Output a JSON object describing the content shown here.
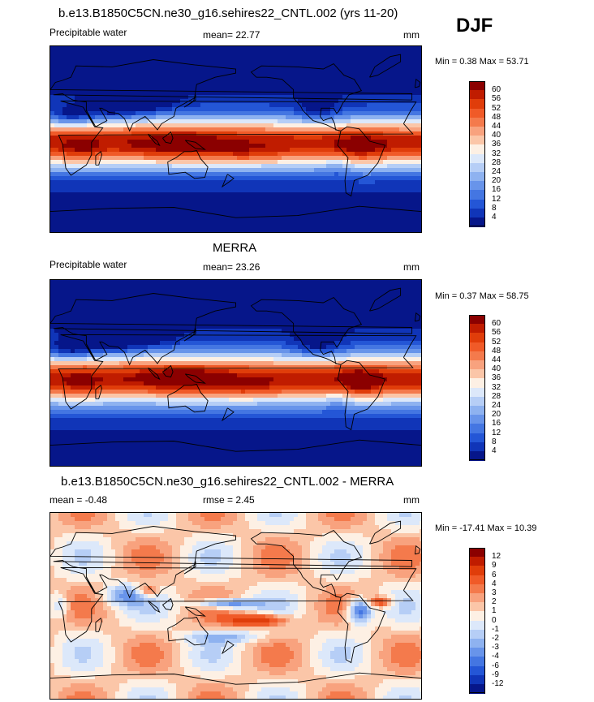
{
  "season": "DJF",
  "panels": [
    {
      "title": "b.e13.B1850C5CN.ne30_g16.sehires22_CNTL.002 (yrs 11-20)",
      "left_label": "Precipitable water",
      "stat_label": "mean=  22.77",
      "units": "mm",
      "minmax": "Min =   0.38 Max =   53.71",
      "type": "field",
      "mean": 22.77,
      "min": 0.38,
      "max": 53.71
    },
    {
      "title": "MERRA",
      "left_label": "Precipitable water",
      "stat_label": "mean=  23.26",
      "units": "mm",
      "minmax": "Min =   0.37 Max =   58.75",
      "type": "field",
      "mean": 23.26,
      "min": 0.37,
      "max": 58.75
    },
    {
      "title": "b.e13.B1850C5CN.ne30_g16.sehires22_CNTL.002 - MERRA",
      "left_label": "mean =  -0.48",
      "stat_label": "rmse =   2.45",
      "units": "mm",
      "minmax": "Min = -17.41 Max =   10.39",
      "type": "diff",
      "mean": -0.48,
      "rmse": 2.45,
      "min": -17.41,
      "max": 10.39
    }
  ],
  "colorbars": {
    "field": {
      "labels": [
        "60",
        "56",
        "52",
        "48",
        "44",
        "40",
        "36",
        "32",
        "28",
        "24",
        "20",
        "16",
        "12",
        "8",
        "4"
      ],
      "colors": [
        "#8b0000",
        "#c01c00",
        "#e03d0a",
        "#f05a28",
        "#f47a4c",
        "#f8a27e",
        "#fbc6a8",
        "#fdf0e4",
        "#dce8fa",
        "#b6cef6",
        "#8eb2f0",
        "#6894ea",
        "#4476e2",
        "#2456d6",
        "#1035b8",
        "#06168a"
      ]
    },
    "diff": {
      "labels": [
        "12",
        "9",
        "6",
        "4",
        "3",
        "2",
        "1",
        "0",
        "-1",
        "-2",
        "-3",
        "-4",
        "-6",
        "-9",
        "-12"
      ],
      "colors": [
        "#8b0000",
        "#c01c00",
        "#e03d0a",
        "#f05a28",
        "#f47a4c",
        "#f8a27e",
        "#fbc6a8",
        "#fdf0e4",
        "#dce8fa",
        "#b6cef6",
        "#8eb2f0",
        "#6894ea",
        "#4476e2",
        "#2456d6",
        "#1035b8",
        "#06168a"
      ]
    }
  }
}
